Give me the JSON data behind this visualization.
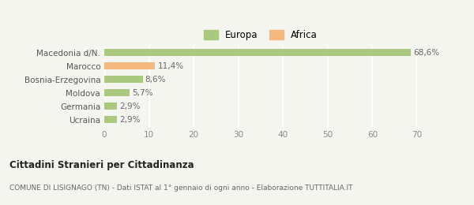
{
  "categories": [
    "Ucraina",
    "Germania",
    "Moldova",
    "Bosnia-Erzegovina",
    "Marocco",
    "Macedonia d/N."
  ],
  "values": [
    2.9,
    2.9,
    5.7,
    8.6,
    11.4,
    68.6
  ],
  "labels": [
    "2,9%",
    "2,9%",
    "5,7%",
    "8,6%",
    "11,4%",
    "68,6%"
  ],
  "colors": [
    "#aac97e",
    "#aac97e",
    "#aac97e",
    "#aac97e",
    "#f5b97f",
    "#aac97e"
  ],
  "legend": [
    {
      "label": "Europa",
      "color": "#aac97e"
    },
    {
      "label": "Africa",
      "color": "#f5b97f"
    }
  ],
  "xlim": [
    0,
    70
  ],
  "xticks": [
    0,
    10,
    20,
    30,
    40,
    50,
    60,
    70
  ],
  "title": "Cittadini Stranieri per Cittadinanza",
  "subtitle": "COMUNE DI LISIGNAGO (TN) - Dati ISTAT al 1° gennaio di ogni anno - Elaborazione TUTTITALIA.IT",
  "background_color": "#f5f5ef",
  "grid_color": "#ffffff",
  "bar_height": 0.55
}
